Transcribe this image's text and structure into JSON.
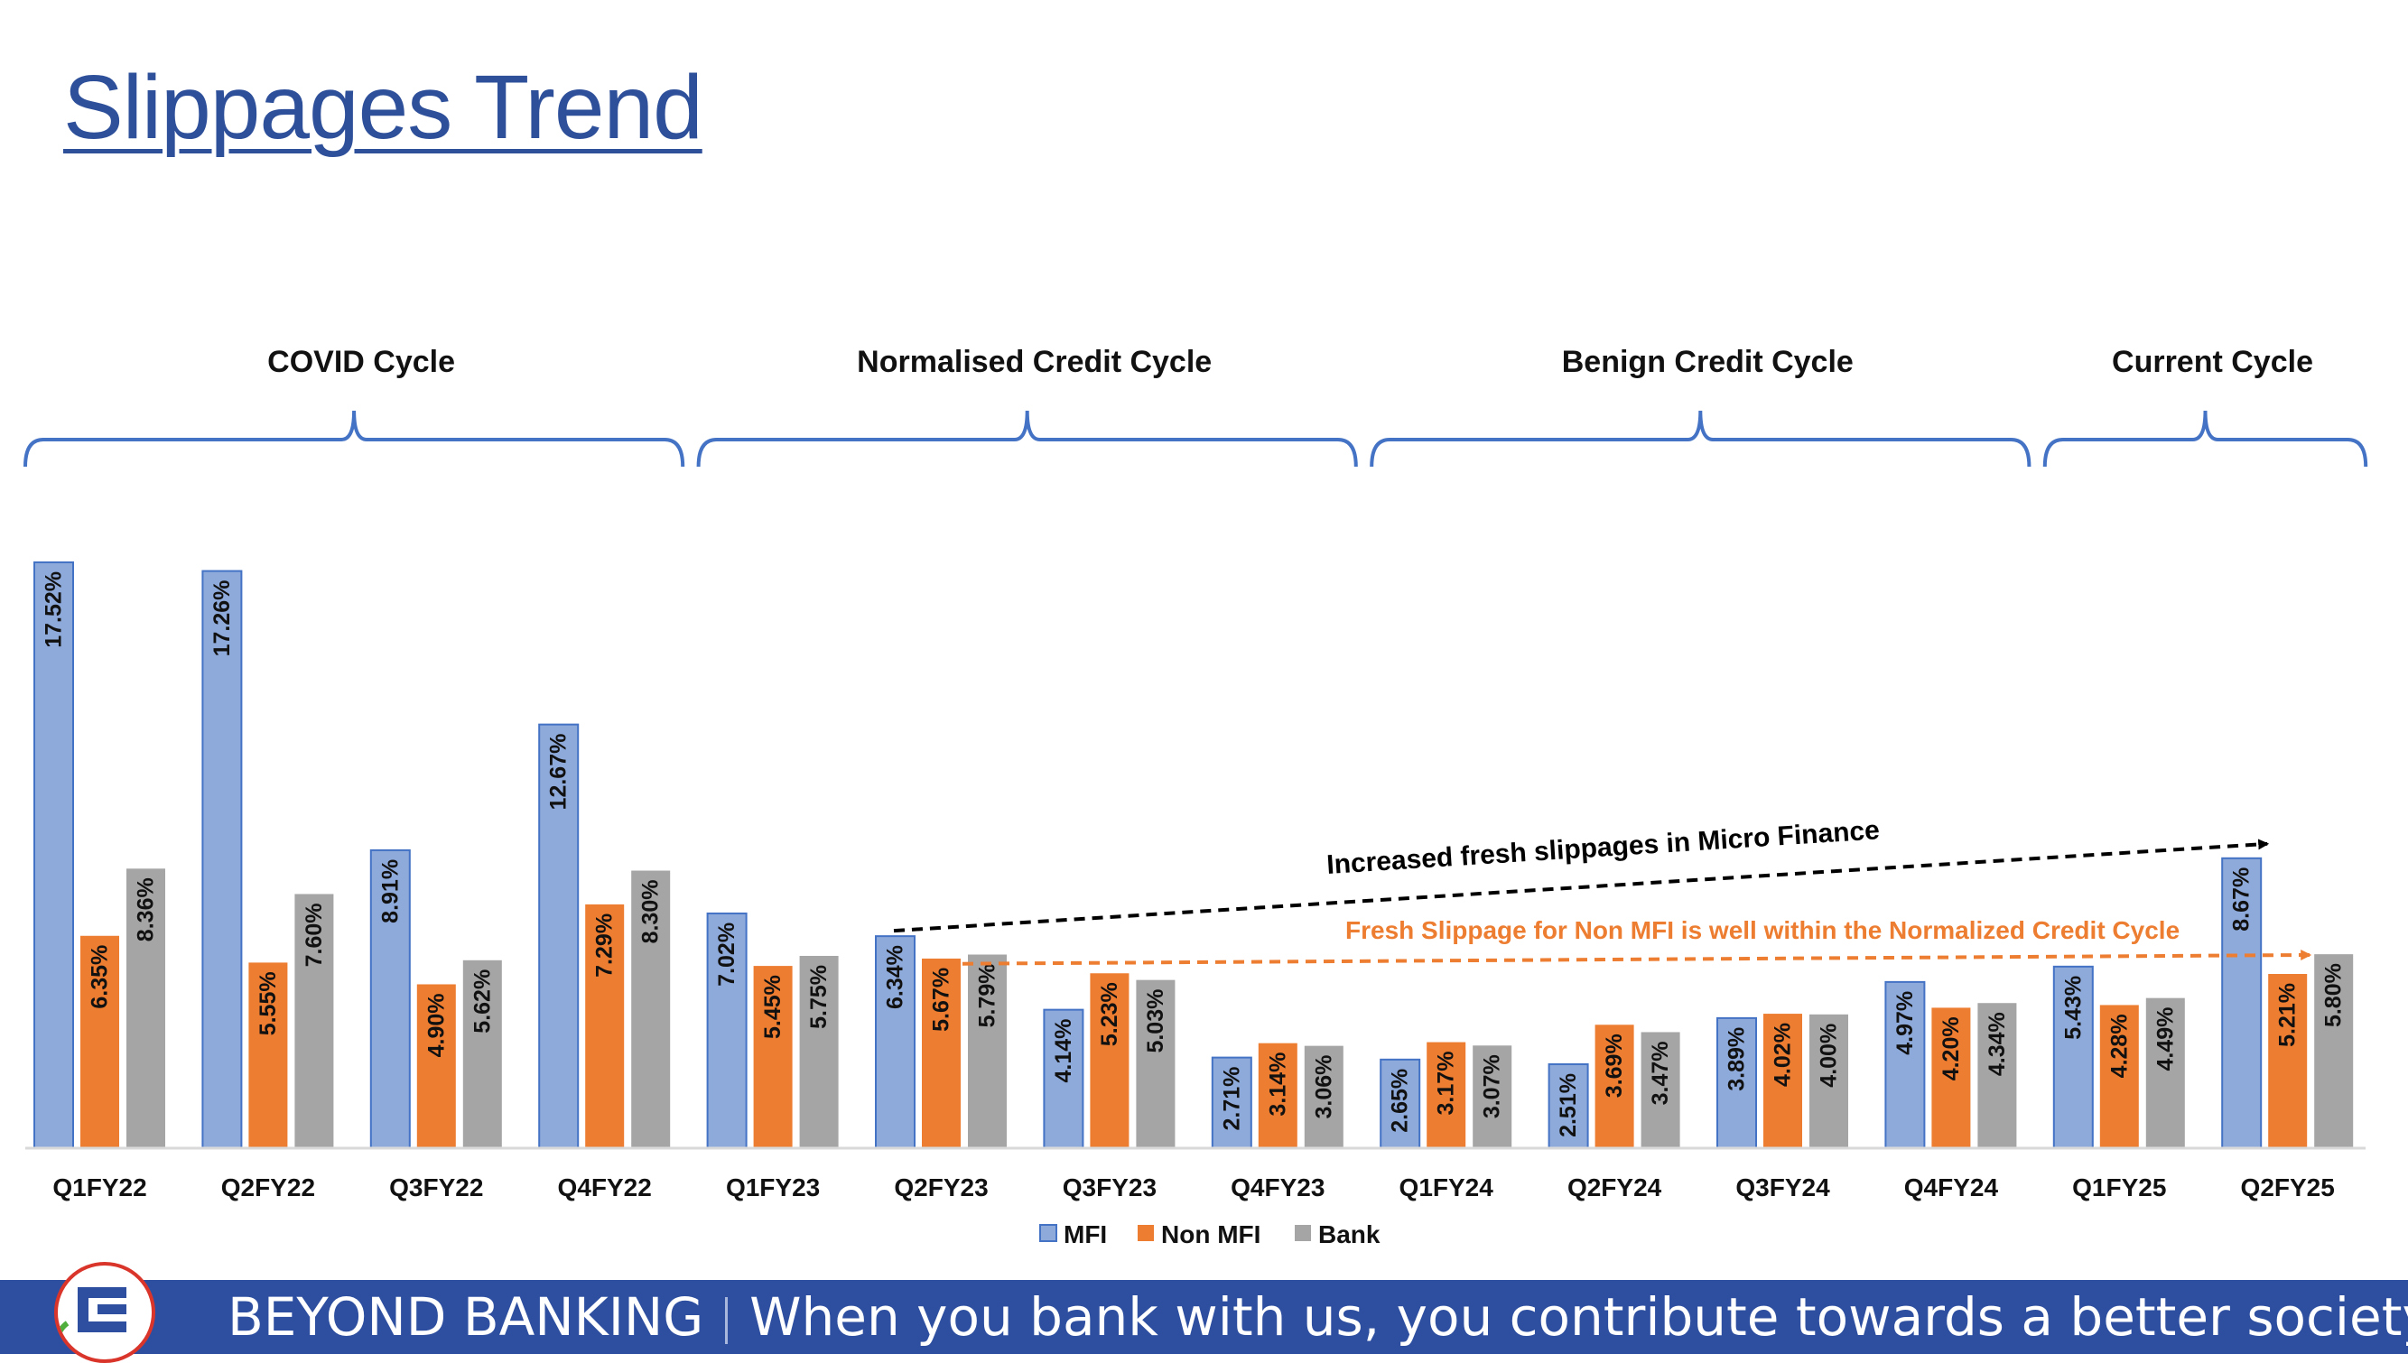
{
  "slide": {
    "title": "Slippages Trend",
    "footer_brand": "BEYOND BANKING",
    "footer_tagline": "When you bank with us, you contribute towards a better society."
  },
  "colors": {
    "mfi": "#8eaadb",
    "mfi_border": "#4472c4",
    "non_mfi": "#ed7d31",
    "bank": "#a5a5a5",
    "title": "#2e4f9a",
    "bracket": "#4472c4",
    "mfi_arrow": "#000000",
    "non_mfi_arrow": "#ed7d31",
    "footer": "#2e4fa0"
  },
  "cycles": [
    {
      "label": "COVID Cycle",
      "from": "Q1FY22",
      "to": "Q4FY22"
    },
    {
      "label": "Normalised Credit Cycle",
      "from": "Q1FY23",
      "to": "Q4FY23"
    },
    {
      "label": "Benign Credit Cycle",
      "from": "Q1FY24",
      "to": "Q4FY24"
    },
    {
      "label": "Current Cycle",
      "from": "Q1FY25",
      "to": "Q2FY25"
    }
  ],
  "annotations": [
    {
      "text": "Increased fresh slippages in Micro Finance",
      "from": "Q2FY23",
      "to": "Q2FY25",
      "series": "MFI",
      "style": "dashed-arrow"
    },
    {
      "text": "Fresh Slippage for Non MFI is well within the Normalized Credit Cycle",
      "from": "Q2FY23",
      "to": "Q2FY25",
      "series": "Non MFI",
      "style": "dashed-arrow"
    }
  ],
  "chart_data": {
    "type": "bar",
    "categories": [
      "Q1FY22",
      "Q2FY22",
      "Q3FY22",
      "Q4FY22",
      "Q1FY23",
      "Q2FY23",
      "Q3FY23",
      "Q4FY23",
      "Q1FY24",
      "Q2FY24",
      "Q3FY24",
      "Q4FY24",
      "Q1FY25",
      "Q2FY25"
    ],
    "series": [
      {
        "name": "MFI",
        "values": [
          17.52,
          17.26,
          8.91,
          12.67,
          7.02,
          6.34,
          4.14,
          2.71,
          2.65,
          2.51,
          3.89,
          4.97,
          5.43,
          8.67
        ],
        "labels": [
          "17.52%",
          "17.26%",
          "8.91%",
          "12.67%",
          "7.02%",
          "6.34%",
          "4.14%",
          "2.71%",
          "2.65%",
          "2.51%",
          "3.89%",
          "4.97%",
          "5.43%",
          "8.67%"
        ]
      },
      {
        "name": "Non MFI",
        "values": [
          6.35,
          5.55,
          4.9,
          7.29,
          5.45,
          5.67,
          5.23,
          3.14,
          3.17,
          3.69,
          4.02,
          4.2,
          4.28,
          5.21
        ],
        "labels": [
          "6.35%",
          "5.55%",
          "4.90%",
          "7.29%",
          "5.45%",
          "5.67%",
          "5.23%",
          "3.14%",
          "3.17%",
          "3.69%",
          "4.02%",
          "4.20%",
          "4.28%",
          "5.21%"
        ]
      },
      {
        "name": "Bank",
        "values": [
          8.36,
          7.6,
          5.62,
          8.3,
          5.75,
          5.79,
          5.03,
          3.06,
          3.07,
          3.47,
          4.0,
          4.34,
          4.49,
          5.8
        ],
        "labels": [
          "8.36%",
          "7.60%",
          "5.62%",
          "8.30%",
          "5.75%",
          "5.79%",
          "5.03%",
          "3.06%",
          "3.07%",
          "3.47%",
          "4.00%",
          "4.34%",
          "4.49%",
          "5.80%"
        ]
      }
    ],
    "title": "",
    "xlabel": "",
    "ylabel": "",
    "ylim": [
      0,
      17.6
    ],
    "grid": false,
    "legend_position": "bottom-center",
    "data_labels": "rotated-vertical-inside"
  }
}
